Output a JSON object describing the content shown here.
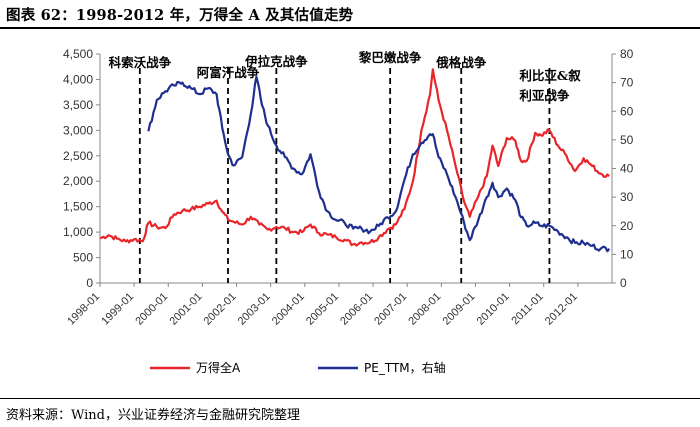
{
  "header": {
    "title": "图表 62：1998-2012 年，万得全 A 及其估值走势"
  },
  "footer": {
    "source": "资料来源：Wind，兴业证券经济与金融研究院整理"
  },
  "chart_data": {
    "type": "line",
    "x_start": "1998-01",
    "x_end": "2012-12",
    "x_ticks": [
      "1998-01",
      "1999-01",
      "2000-01",
      "2001-01",
      "2002-01",
      "2003-01",
      "2004-01",
      "2005-01",
      "2006-01",
      "2007-01",
      "2008-01",
      "2009-01",
      "2010-01",
      "2011-01",
      "2012-01"
    ],
    "y_left": {
      "min": 0,
      "max": 4500,
      "ticks": [
        "0",
        "500",
        "1,000",
        "1,500",
        "2,000",
        "2,500",
        "3,000",
        "3,500",
        "4,000",
        "4,500"
      ]
    },
    "y_right": {
      "min": 0,
      "max": 80,
      "ticks": [
        "0",
        "10",
        "20",
        "30",
        "40",
        "50",
        "60",
        "70",
        "80"
      ]
    },
    "series": [
      {
        "name": "万得全A",
        "axis": "left",
        "color": "#e8262a",
        "points": [
          [
            "1998-01",
            880
          ],
          [
            "1998-04",
            940
          ],
          [
            "1998-07",
            870
          ],
          [
            "1998-10",
            820
          ],
          [
            "1999-01",
            860
          ],
          [
            "1999-04",
            820
          ],
          [
            "1999-06",
            1180
          ],
          [
            "1999-09",
            1100
          ],
          [
            "1999-12",
            1080
          ],
          [
            "2000-03",
            1350
          ],
          [
            "2000-06",
            1420
          ],
          [
            "2000-09",
            1450
          ],
          [
            "2000-12",
            1500
          ],
          [
            "2001-03",
            1560
          ],
          [
            "2001-06",
            1620
          ],
          [
            "2001-08",
            1400
          ],
          [
            "2001-10",
            1250
          ],
          [
            "2001-12",
            1200
          ],
          [
            "2002-03",
            1150
          ],
          [
            "2002-06",
            1300
          ],
          [
            "2002-09",
            1150
          ],
          [
            "2002-12",
            1050
          ],
          [
            "2003-03",
            1100
          ],
          [
            "2003-06",
            1080
          ],
          [
            "2003-09",
            1000
          ],
          [
            "2003-12",
            1000
          ],
          [
            "2004-03",
            1150
          ],
          [
            "2004-06",
            980
          ],
          [
            "2004-09",
            950
          ],
          [
            "2004-12",
            900
          ],
          [
            "2005-03",
            850
          ],
          [
            "2005-06",
            760
          ],
          [
            "2005-09",
            800
          ],
          [
            "2005-12",
            800
          ],
          [
            "2006-03",
            900
          ],
          [
            "2006-06",
            1050
          ],
          [
            "2006-09",
            1150
          ],
          [
            "2006-12",
            1450
          ],
          [
            "2007-03",
            2000
          ],
          [
            "2007-06",
            3000
          ],
          [
            "2007-09",
            3700
          ],
          [
            "2007-10",
            4200
          ],
          [
            "2007-12",
            3600
          ],
          [
            "2008-03",
            3000
          ],
          [
            "2008-06",
            2300
          ],
          [
            "2008-09",
            1600
          ],
          [
            "2008-11",
            1300
          ],
          [
            "2009-02",
            1700
          ],
          [
            "2009-05",
            2100
          ],
          [
            "2009-07",
            2700
          ],
          [
            "2009-09",
            2300
          ],
          [
            "2009-12",
            2850
          ],
          [
            "2010-03",
            2800
          ],
          [
            "2010-05",
            2400
          ],
          [
            "2010-07",
            2400
          ],
          [
            "2010-10",
            2950
          ],
          [
            "2010-12",
            2900
          ],
          [
            "2011-03",
            3000
          ],
          [
            "2011-06",
            2700
          ],
          [
            "2011-09",
            2500
          ],
          [
            "2011-12",
            2200
          ],
          [
            "2012-03",
            2450
          ],
          [
            "2012-06",
            2300
          ],
          [
            "2012-09",
            2150
          ],
          [
            "2012-12",
            2100
          ]
        ]
      },
      {
        "name": "PE_TTM，右轴",
        "axis": "right",
        "color": "#1f2f8f",
        "points": [
          [
            "1999-06",
            53
          ],
          [
            "1999-09",
            64
          ],
          [
            "1999-12",
            67
          ],
          [
            "2000-03",
            69
          ],
          [
            "2000-06",
            70
          ],
          [
            "2000-09",
            68
          ],
          [
            "2000-12",
            66
          ],
          [
            "2001-03",
            68
          ],
          [
            "2001-06",
            66
          ],
          [
            "2001-08",
            54
          ],
          [
            "2001-10",
            45
          ],
          [
            "2001-12",
            41
          ],
          [
            "2002-03",
            44
          ],
          [
            "2002-06",
            59
          ],
          [
            "2002-08",
            72
          ],
          [
            "2002-10",
            62
          ],
          [
            "2002-12",
            55
          ],
          [
            "2003-03",
            48
          ],
          [
            "2003-06",
            44
          ],
          [
            "2003-09",
            40
          ],
          [
            "2003-12",
            38
          ],
          [
            "2004-03",
            45
          ],
          [
            "2004-06",
            32
          ],
          [
            "2004-09",
            25
          ],
          [
            "2004-12",
            22
          ],
          [
            "2005-03",
            21
          ],
          [
            "2005-06",
            19
          ],
          [
            "2005-09",
            19
          ],
          [
            "2005-12",
            18
          ],
          [
            "2006-03",
            20
          ],
          [
            "2006-06",
            23
          ],
          [
            "2006-09",
            25
          ],
          [
            "2006-12",
            36
          ],
          [
            "2007-03",
            45
          ],
          [
            "2007-06",
            49
          ],
          [
            "2007-09",
            52
          ],
          [
            "2007-10",
            52
          ],
          [
            "2007-12",
            44
          ],
          [
            "2008-03",
            38
          ],
          [
            "2008-06",
            30
          ],
          [
            "2008-09",
            21
          ],
          [
            "2008-11",
            15
          ],
          [
            "2009-02",
            22
          ],
          [
            "2009-05",
            30
          ],
          [
            "2009-07",
            35
          ],
          [
            "2009-09",
            30
          ],
          [
            "2009-12",
            33
          ],
          [
            "2010-03",
            29
          ],
          [
            "2010-05",
            23
          ],
          [
            "2010-07",
            20
          ],
          [
            "2010-10",
            21
          ],
          [
            "2010-12",
            20
          ],
          [
            "2011-03",
            20
          ],
          [
            "2011-06",
            18
          ],
          [
            "2011-09",
            16
          ],
          [
            "2011-12",
            14
          ],
          [
            "2012-03",
            14
          ],
          [
            "2012-06",
            13
          ],
          [
            "2012-09",
            12
          ],
          [
            "2012-12",
            12
          ]
        ]
      }
    ],
    "events": [
      {
        "label": "科索沃战争",
        "date": "1999-03"
      },
      {
        "label": "阿富汗战争",
        "date": "2001-10"
      },
      {
        "label": "伊拉克战争",
        "date": "2003-03"
      },
      {
        "label": "黎巴嫩战争",
        "date": "2006-07"
      },
      {
        "label": "俄格战争",
        "date": "2008-08"
      },
      {
        "label": "利比亚&叙利亚战争",
        "label_line1": "利比亚&叙",
        "label_line2": "利亚战争",
        "date": "2011-03"
      }
    ],
    "legend": {
      "position": "bottom"
    }
  }
}
